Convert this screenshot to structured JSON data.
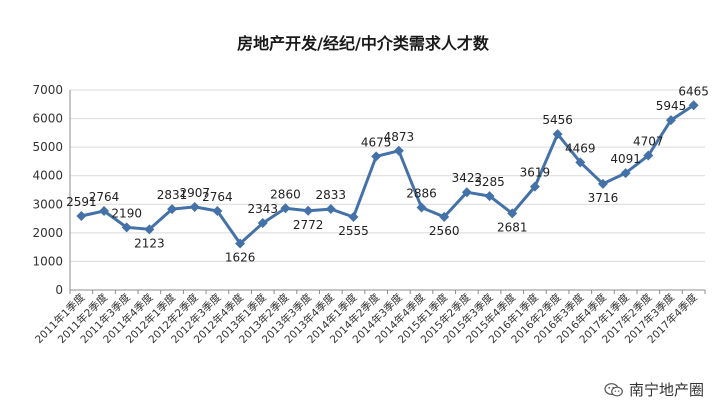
{
  "chart_data": {
    "type": "line",
    "title": "房地产开发/经纪/中介类需求人才数",
    "xlabel": "",
    "ylabel": "",
    "ylim": [
      0,
      7000
    ],
    "yticks": [
      "0",
      "1000",
      "2000",
      "3000",
      "4000",
      "5000",
      "6000",
      "7000"
    ],
    "grid": true,
    "legend": "none",
    "colors": {
      "line": "#4472a8",
      "marker": "#4472a8",
      "grid": "#d9d9d9",
      "axis": "#8c8c8c"
    },
    "categories": [
      "2011年1季度",
      "2011年2季度",
      "2011年3季度",
      "2011年4季度",
      "2012年1季度",
      "2012年2季度",
      "2012年3季度",
      "2012年4季度",
      "2013年1季度",
      "2013年2季度",
      "2013年3季度",
      "2013年4季度",
      "2014年1季度",
      "2014年2季度",
      "2014年3季度",
      "2014年4季度",
      "2015年1季度",
      "2015年2季度",
      "2015年3季度",
      "2015年4季度",
      "2016年1季度",
      "2016年2季度",
      "2016年3季度",
      "2016年4季度",
      "2017年1季度",
      "2017年2季度",
      "2017年3季度",
      "2017年4季度"
    ],
    "values": [
      2591,
      2764,
      2190,
      2123,
      2831,
      2907,
      2764,
      1626,
      2343,
      2860,
      2772,
      2833,
      2555,
      4675,
      4873,
      2886,
      2560,
      3422,
      3285,
      2681,
      3619,
      5456,
      4469,
      3716,
      4091,
      4707,
      5945,
      6465
    ]
  },
  "watermark": {
    "text": "南宁地产圈",
    "icon": "wechat-icon"
  }
}
